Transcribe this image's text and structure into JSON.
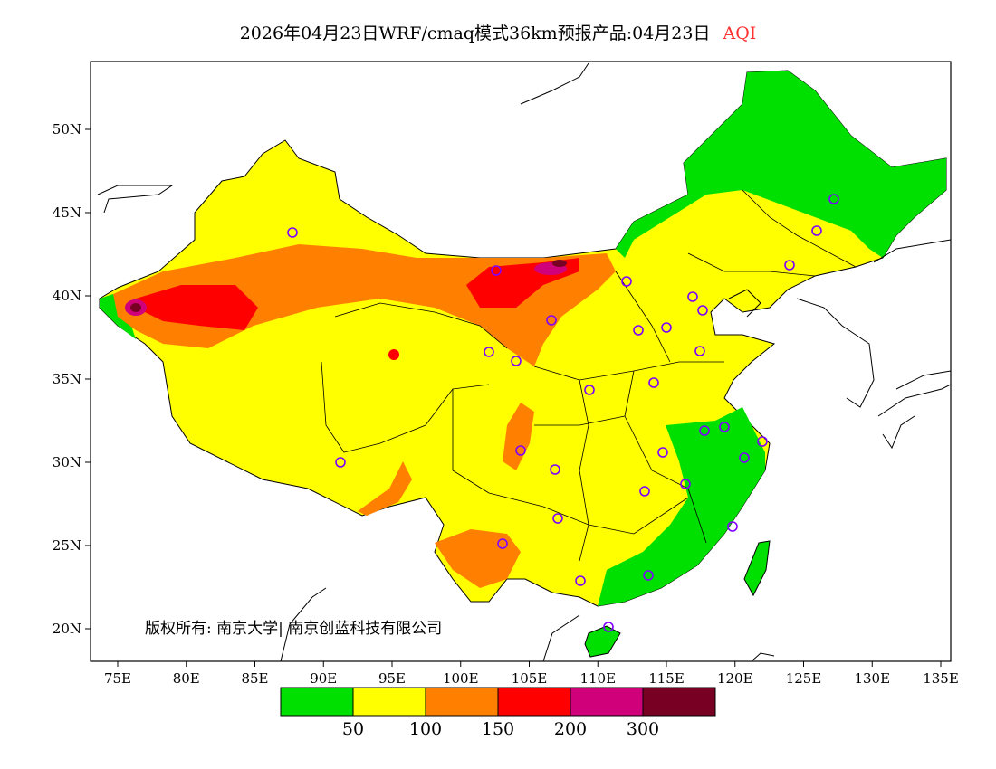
{
  "title": {
    "main": "2026年04月23日WRF/cmaq模式36km预报产品:04月23日",
    "variable": "AQI",
    "variable_color": "#ff3030"
  },
  "axes": {
    "lon_labels": [
      "75E",
      "80E",
      "85E",
      "90E",
      "95E",
      "100E",
      "105E",
      "110E",
      "115E",
      "120E",
      "125E",
      "130E",
      "135E"
    ],
    "lat_labels": [
      "50N",
      "45N",
      "40N",
      "35N",
      "30N",
      "25N",
      "20N"
    ]
  },
  "legend": {
    "colors": [
      "#00e000",
      "#ffff00",
      "#ff8000",
      "#ff0000",
      "#d0007a",
      "#780022"
    ],
    "labels": [
      "50",
      "100",
      "150",
      "200",
      "300"
    ]
  },
  "copyright": "版权所有: 南京大学| 南京创蓝科技有限公司"
}
